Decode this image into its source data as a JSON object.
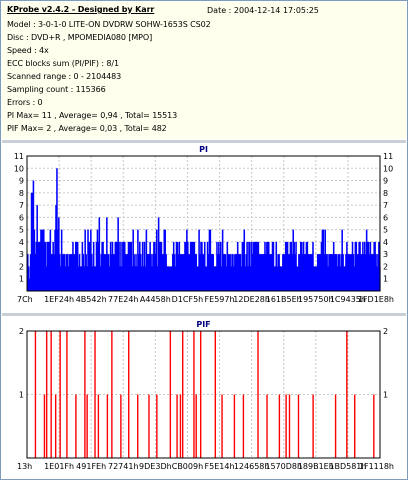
{
  "header": {
    "title": "KProbe v2.4.2 - Designed by Karr",
    "date": "Date : 2004-12-14 17:05:25",
    "lines": [
      "Model : 3-0-1-0 LITE-ON DVDRW SOHW-1653S CS02",
      "Disc : DVD+R , MPOMEDIA080 [MPO]",
      "Speed : 4x",
      "ECC blocks sum (PI/PIF) : 8/1",
      "Scanned range : 0 - 2104483",
      "Sampling count : 115366",
      "Errors : 0",
      "PI Max= 11 , Average= 0,94 , Total= 15513",
      "PIF Max= 2 , Average= 0,03 , Total= 482"
    ]
  },
  "chart_data": [
    {
      "type": "bar",
      "title": "PI",
      "color": "#0000ff",
      "ylim": [
        0,
        11
      ],
      "y_ticks": [
        1,
        2,
        3,
        4,
        5,
        6,
        7,
        8,
        9,
        10,
        11
      ],
      "x_tick_labels": [
        "7Ch",
        "1EF24h",
        "4B542h",
        "77E24h",
        "A4458h",
        "D1CF5h",
        "FE597h",
        "12DE28h",
        "161B5Eh",
        "195750h",
        "1C9435h",
        "1FD1E8h"
      ],
      "grid": true,
      "series": [
        {
          "values": [
            3,
            2,
            1,
            3,
            8,
            8,
            9,
            5,
            3,
            4,
            7,
            4,
            4,
            4,
            5,
            5,
            5,
            5,
            4,
            4,
            2,
            4,
            4,
            4,
            5,
            3,
            3,
            4,
            3,
            5,
            7,
            10,
            5,
            6,
            3,
            2,
            5,
            3,
            3,
            3,
            2,
            3,
            3,
            2,
            3,
            3,
            3,
            3,
            4,
            3,
            3,
            4,
            4,
            4,
            2,
            3,
            2,
            2,
            4,
            3,
            2,
            5,
            3,
            2,
            5,
            4,
            4,
            5,
            3,
            2,
            4,
            2,
            2,
            4,
            5,
            4,
            6,
            2,
            3,
            4,
            4,
            3,
            3,
            3,
            6,
            3,
            3,
            2,
            4,
            3,
            4,
            3,
            3,
            4,
            4,
            4,
            6,
            4,
            2,
            4,
            2,
            4,
            4,
            4,
            3,
            3,
            3,
            4,
            4,
            4,
            4,
            2,
            5,
            3,
            2,
            3,
            2,
            5,
            3,
            4,
            3,
            2,
            4,
            2,
            4,
            2,
            5,
            3,
            3,
            3,
            4,
            3,
            2,
            3,
            4,
            4,
            3,
            5,
            2,
            6,
            4,
            4,
            4,
            3,
            3,
            5,
            5,
            3,
            2,
            2,
            2,
            2,
            2,
            2,
            3,
            4,
            3,
            2,
            4,
            4,
            3,
            4,
            3,
            3,
            3,
            3,
            3,
            4,
            4,
            5,
            4,
            3,
            3,
            4,
            4,
            4,
            4,
            4,
            3,
            3,
            2,
            2,
            5,
            3,
            4,
            4,
            3,
            3,
            4,
            2,
            2,
            4,
            3,
            5,
            5,
            3,
            3,
            3,
            2,
            2,
            2,
            4,
            3,
            4,
            3,
            4,
            2,
            5,
            3,
            3,
            3,
            2,
            4,
            3,
            3,
            3,
            2,
            3,
            3,
            2,
            3,
            3,
            3,
            4,
            3,
            3,
            3,
            2,
            4,
            4,
            5,
            2,
            3,
            4,
            2,
            4,
            4,
            2,
            4,
            3,
            4,
            4,
            4,
            4,
            4,
            4,
            3,
            3,
            3,
            3,
            3,
            3,
            4,
            3,
            4,
            4,
            4,
            3,
            3,
            3,
            4,
            4,
            2,
            2,
            4,
            2,
            3,
            3,
            2,
            2,
            2,
            3,
            3,
            3,
            4,
            4,
            4,
            3,
            3,
            4,
            4,
            3,
            5,
            4,
            3,
            4,
            2,
            2,
            3,
            3,
            4,
            4,
            3,
            4,
            3,
            3,
            4,
            4,
            3,
            3,
            3,
            3,
            3,
            4,
            2,
            2,
            2,
            2,
            3,
            3,
            3,
            3,
            4,
            5,
            5,
            3,
            5,
            3,
            3,
            2,
            3,
            3,
            3,
            3,
            3,
            4,
            3,
            3,
            3,
            2,
            3,
            3,
            2,
            3,
            5,
            3,
            2,
            2,
            3,
            4,
            3,
            3,
            3,
            3,
            3,
            4,
            3,
            2,
            4,
            4,
            3,
            3,
            4,
            4,
            3,
            3,
            4,
            3,
            4,
            3,
            5,
            4,
            4,
            3,
            4,
            3,
            3,
            3,
            4,
            4,
            3,
            2,
            3,
            4,
            2
          ]
        }
      ]
    },
    {
      "type": "bar",
      "title": "PIF",
      "color": "#ff0000",
      "ylim": [
        0,
        2
      ],
      "y_ticks": [
        1,
        2
      ],
      "x_tick_labels": [
        "13h",
        "1E01Fh",
        "491FEh",
        "72741h",
        "9DE3Dh",
        "CB009h",
        "F5E14h",
        "124658h",
        "1570D8h",
        "189B1Eh",
        "1BD581h",
        "1F1118h"
      ],
      "grid": true,
      "series": [
        {
          "values": [
            0,
            0,
            0,
            0,
            0,
            0,
            0,
            2,
            0,
            0,
            0,
            0,
            0,
            0,
            0,
            1,
            0,
            2,
            0,
            0,
            0,
            2,
            0,
            0,
            0,
            1,
            0,
            0,
            0,
            2,
            0,
            0,
            0,
            0,
            0,
            2,
            0,
            0,
            0,
            0,
            0,
            0,
            0,
            1,
            0,
            0,
            0,
            0,
            0,
            0,
            0,
            2,
            0,
            1,
            0,
            0,
            0,
            0,
            0,
            0,
            2,
            0,
            0,
            1,
            0,
            0,
            0,
            0,
            0,
            0,
            0,
            1,
            0,
            0,
            0,
            2,
            0,
            0,
            0,
            0,
            0,
            0,
            0,
            1,
            0,
            0,
            0,
            0,
            0,
            0,
            2,
            0,
            0,
            0,
            0,
            0,
            0,
            0,
            1,
            0,
            0,
            0,
            0,
            0,
            0,
            0,
            0,
            0,
            1,
            0,
            0,
            0,
            0,
            0,
            0,
            1,
            0,
            0,
            0,
            0,
            0,
            0,
            0,
            0,
            0,
            0,
            0,
            2,
            0,
            0,
            0,
            0,
            0,
            1,
            0,
            0,
            1,
            0,
            2,
            0,
            0,
            0,
            0,
            0,
            0,
            0,
            0,
            0,
            2,
            0,
            1,
            0,
            0,
            0,
            2,
            0,
            0,
            0,
            0,
            0,
            0,
            0,
            0,
            0,
            0,
            0,
            0,
            2,
            0,
            0,
            0,
            0,
            0,
            1,
            0,
            0,
            0,
            0,
            0,
            0,
            0,
            0,
            0,
            0,
            1,
            0,
            0,
            0,
            0,
            0,
            0,
            0,
            1,
            0,
            0,
            0,
            0,
            0,
            0,
            0,
            0,
            0,
            0,
            0,
            0,
            2,
            0,
            0,
            0,
            0,
            0,
            0,
            0,
            1,
            0,
            0,
            0,
            0,
            0,
            0,
            0,
            0,
            0,
            0,
            1,
            0,
            0,
            0,
            0,
            0,
            1,
            0,
            0,
            1,
            0,
            0,
            0,
            0,
            0,
            0,
            0,
            1,
            0,
            0,
            0,
            0,
            0,
            0,
            0,
            0,
            0,
            0,
            0,
            0,
            1,
            0,
            0,
            0,
            0,
            0,
            0,
            0,
            0,
            0,
            0,
            0,
            0,
            0,
            0,
            0,
            0,
            0,
            0,
            0,
            1,
            0,
            0,
            0,
            0,
            0,
            0,
            0,
            0,
            0,
            2,
            0,
            0,
            0,
            0,
            0,
            0,
            1,
            0,
            0,
            0,
            0,
            0,
            0,
            0,
            0,
            0,
            0,
            0,
            0,
            0,
            0,
            0,
            0,
            1,
            0,
            0,
            0,
            0,
            0
          ]
        }
      ]
    }
  ]
}
